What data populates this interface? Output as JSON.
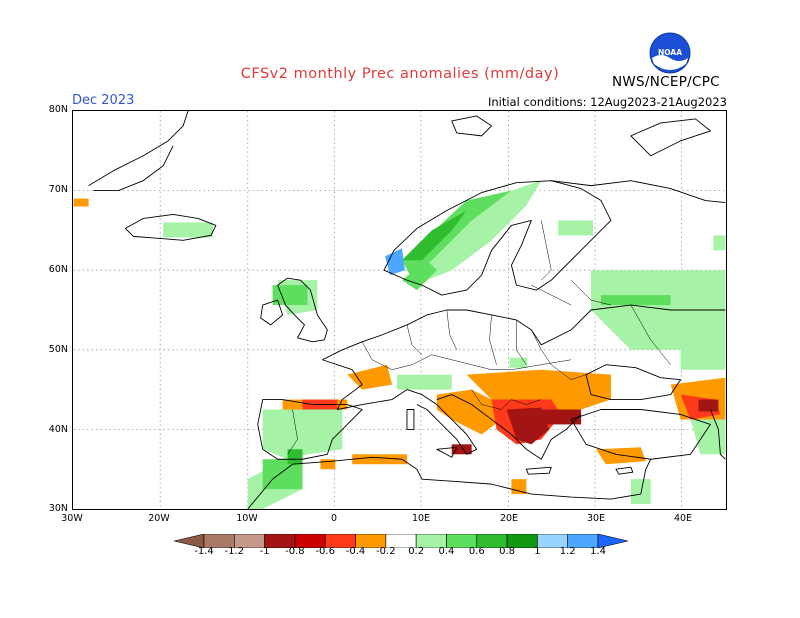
{
  "header": {
    "title": "CFSv2 monthly Prec anomalies (mm/day)",
    "month": "Dec 2023",
    "init": "Initial conditions: 12Aug2023-21Aug2023",
    "agency": "NWS/NCEP/CPC",
    "logo_text": "NOAA"
  },
  "colors": {
    "title": "#e03a3a",
    "month": "#3355cc",
    "land_outline": "#000000",
    "grid": "#999999"
  },
  "map": {
    "lat_labels": [
      "80N",
      "70N",
      "60N",
      "50N",
      "40N",
      "30N"
    ],
    "lon_labels": [
      "30W",
      "20W",
      "10W",
      "0",
      "10E",
      "20E",
      "30E",
      "40E"
    ]
  },
  "colorbar": {
    "labels": [
      "-1.4",
      "-1.2",
      "-1",
      "-0.8",
      "-0.6",
      "-0.4",
      "-0.2",
      "0.2",
      "0.4",
      "0.6",
      "0.8",
      "1",
      "1.2",
      "1.4"
    ],
    "colors": [
      "#8b5a44",
      "#a87a67",
      "#c59a8b",
      "#a31414",
      "#cc0000",
      "#ff3a1a",
      "#ff9900",
      "#ffffff",
      "#a6f2a6",
      "#5ede5e",
      "#2fbd2f",
      "#129912",
      "#99d4ff",
      "#4da6ff",
      "#1a66ff"
    ]
  }
}
